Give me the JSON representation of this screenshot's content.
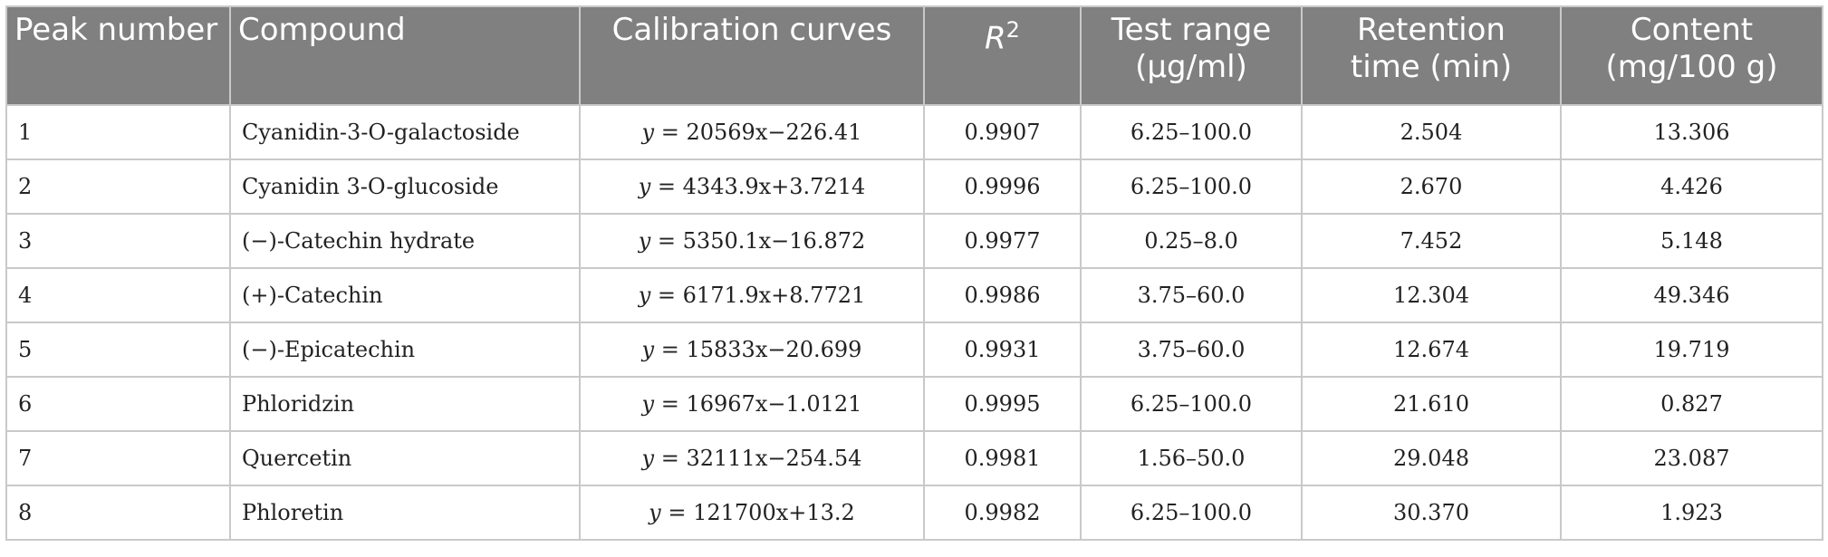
{
  "table": {
    "columns": [
      "Peak number",
      "Compound",
      "Calibration curves",
      "R2",
      "Test range (µg/ml)",
      "Retention time (min)",
      "Content (mg/100 g)"
    ],
    "headers": {
      "peak_number": "Peak number",
      "compound": "Compound",
      "calibration": "Calibration curves",
      "r2_base": "R",
      "r2_sup": "2",
      "test_range_1": "Test range",
      "test_range_2": "(µg/ml)",
      "retention_1": "Retention",
      "retention_2": "time (min)",
      "content_1": "Content",
      "content_2": "(mg/100 g)"
    },
    "rows": [
      {
        "peak": "1",
        "compound": "Cyanidin-3-O-galactoside",
        "eq_var": "y",
        "eq_rest": " = 20569x−226.41",
        "r2": "0.9907",
        "range": "6.25–100.0",
        "retention": "2.504",
        "content": "13.306"
      },
      {
        "peak": "2",
        "compound": "Cyanidin 3-O-glucoside",
        "eq_var": "y",
        "eq_rest": " = 4343.9x+3.7214",
        "r2": "0.9996",
        "range": "6.25–100.0",
        "retention": "2.670",
        "content": "4.426"
      },
      {
        "peak": "3",
        "compound": "(−)-Catechin hydrate",
        "eq_var": "y",
        "eq_rest": " = 5350.1x−16.872",
        "r2": "0.9977",
        "range": "0.25–8.0",
        "retention": "7.452",
        "content": "5.148"
      },
      {
        "peak": "4",
        "compound": "(+)-Catechin",
        "eq_var": "y",
        "eq_rest": " = 6171.9x+8.7721",
        "r2": "0.9986",
        "range": "3.75–60.0",
        "retention": "12.304",
        "content": "49.346"
      },
      {
        "peak": "5",
        "compound": "(−)-Epicatechin",
        "eq_var": "y",
        "eq_rest": " = 15833x−20.699",
        "r2": "0.9931",
        "range": "3.75–60.0",
        "retention": "12.674",
        "content": "19.719"
      },
      {
        "peak": "6",
        "compound": "Phloridzin",
        "eq_var": "y",
        "eq_rest": " = 16967x−1.0121",
        "r2": "0.9995",
        "range": "6.25–100.0",
        "retention": "21.610",
        "content": "0.827"
      },
      {
        "peak": "7",
        "compound": "Quercetin",
        "eq_var": "y",
        "eq_rest": " = 32111x−254.54",
        "r2": "0.9981",
        "range": "1.56–50.0",
        "retention": "29.048",
        "content": "23.087"
      },
      {
        "peak": "8",
        "compound": "Phloretin",
        "eq_var": "y",
        "eq_rest": " = 121700x+13.2",
        "r2": "0.9982",
        "range": "6.25–100.0",
        "retention": "30.370",
        "content": "1.923"
      }
    ]
  },
  "colors": {
    "header_bg": "#808080",
    "header_text": "#ffffff",
    "grid": "#c9c9c9",
    "cell_text": "#222222"
  }
}
